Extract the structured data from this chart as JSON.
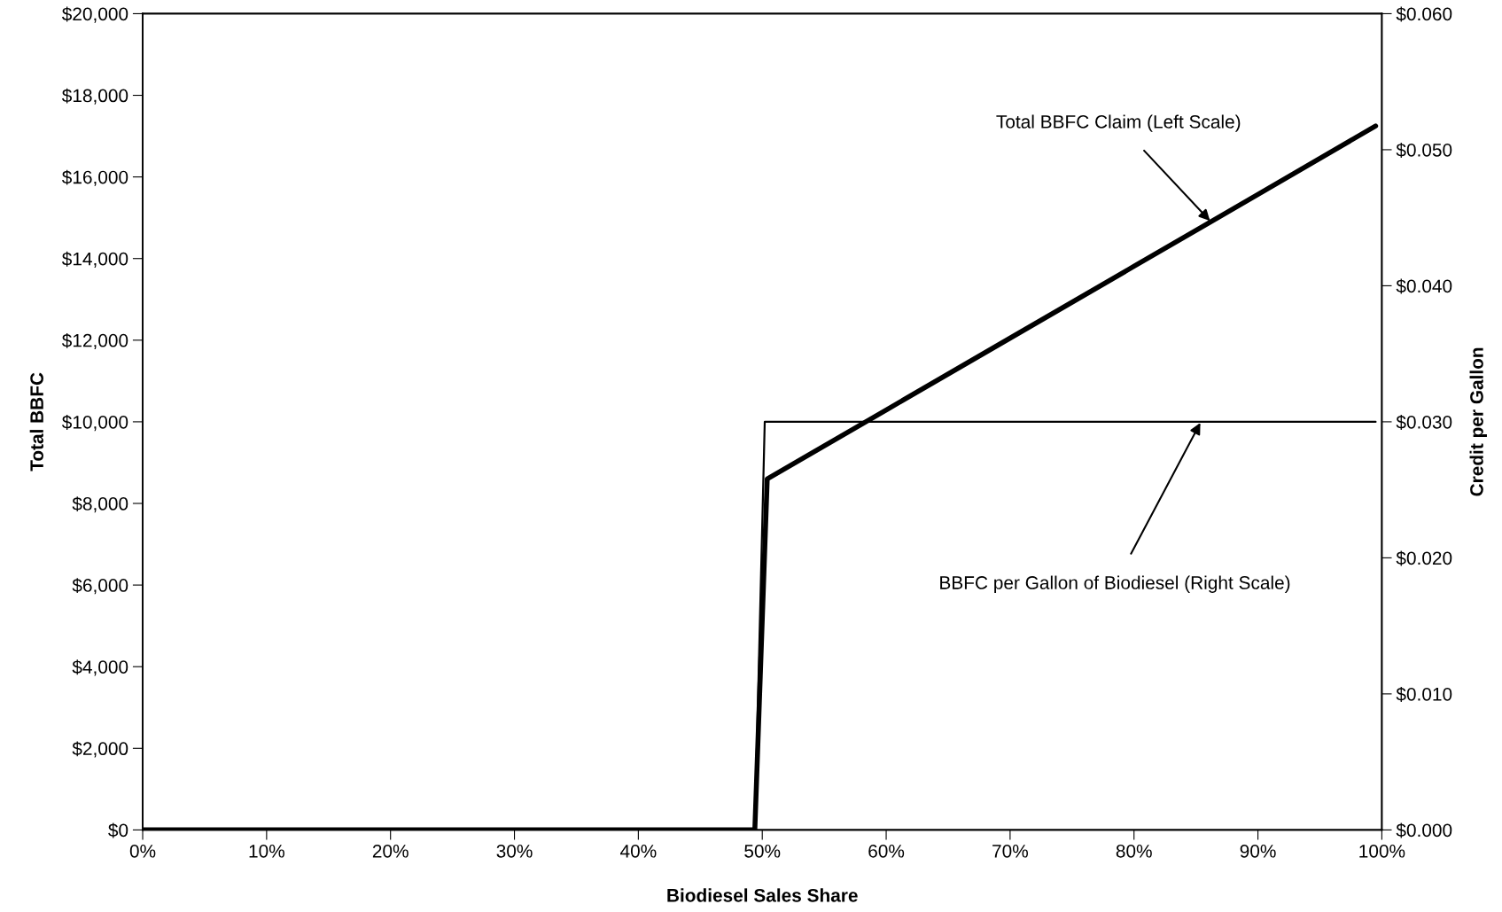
{
  "chart_data": {
    "type": "line",
    "xlabel": "Biodiesel Sales Share",
    "ylabel": "Total BBFC",
    "y2label": "Credit per Gallon",
    "series": [
      {
        "color": "#000000",
        "x": [
          0,
          49.4,
          50.4,
          60,
          70,
          80,
          90,
          99.5
        ],
        "values": [
          0,
          0,
          8600,
          10290,
          12050,
          13810,
          15570,
          17250
        ]
      },
      {
        "color": "#000000",
        "axis": "y2",
        "x": [
          0,
          49.4,
          50.2,
          99.5
        ],
        "values": [
          0,
          0,
          0.03,
          0.03
        ]
      }
    ],
    "xlim": [
      0,
      100
    ],
    "xticks": [
      {
        "value": 0,
        "label": "0%"
      },
      {
        "value": 10,
        "label": "10%"
      },
      {
        "value": 20,
        "label": "20%"
      },
      {
        "value": 30,
        "label": "30%"
      },
      {
        "value": 40,
        "label": "40%"
      },
      {
        "value": 50,
        "label": "50%"
      },
      {
        "value": 60,
        "label": "60%"
      },
      {
        "value": 70,
        "label": "70%"
      },
      {
        "value": 80,
        "label": "80%"
      },
      {
        "value": 90,
        "label": "90%"
      },
      {
        "value": 100,
        "label": "100%"
      }
    ],
    "ylim": [
      0,
      20000
    ],
    "yticks": [
      {
        "value": 0,
        "label": "$0"
      },
      {
        "value": 2000,
        "label": "$2,000"
      },
      {
        "value": 4000,
        "label": "$4,000"
      },
      {
        "value": 6000,
        "label": "$6,000"
      },
      {
        "value": 8000,
        "label": "$8,000"
      },
      {
        "value": 10000,
        "label": "$10,000"
      },
      {
        "value": 12000,
        "label": "$12,000"
      },
      {
        "value": 14000,
        "label": "$14,000"
      },
      {
        "value": 16000,
        "label": "$16,000"
      },
      {
        "value": 18000,
        "label": "$18,000"
      },
      {
        "value": 20000,
        "label": "$20,000"
      }
    ],
    "y2lim": [
      0,
      0.06
    ],
    "y2ticks": [
      {
        "value": 0,
        "label": "$0.000"
      },
      {
        "value": 0.01,
        "label": "$0.010"
      },
      {
        "value": 0.02,
        "label": "$0.020"
      },
      {
        "value": 0.03,
        "label": "$0.030"
      },
      {
        "value": 0.04,
        "label": "$0.040"
      },
      {
        "value": 0.05,
        "label": "$0.050"
      },
      {
        "value": 0.06,
        "label": "$0.060"
      }
    ],
    "annotations": [
      {
        "text": "Total BBFC Claim (Left Scale)",
        "x": 86.2,
        "y": 14900
      },
      {
        "text": "BBFC per Gallon of Biodiesel (Right Scale)",
        "x": 85.4,
        "y": 10000
      }
    ],
    "grid": false,
    "legend": false,
    "marker": "none",
    "line_style": "solid"
  }
}
